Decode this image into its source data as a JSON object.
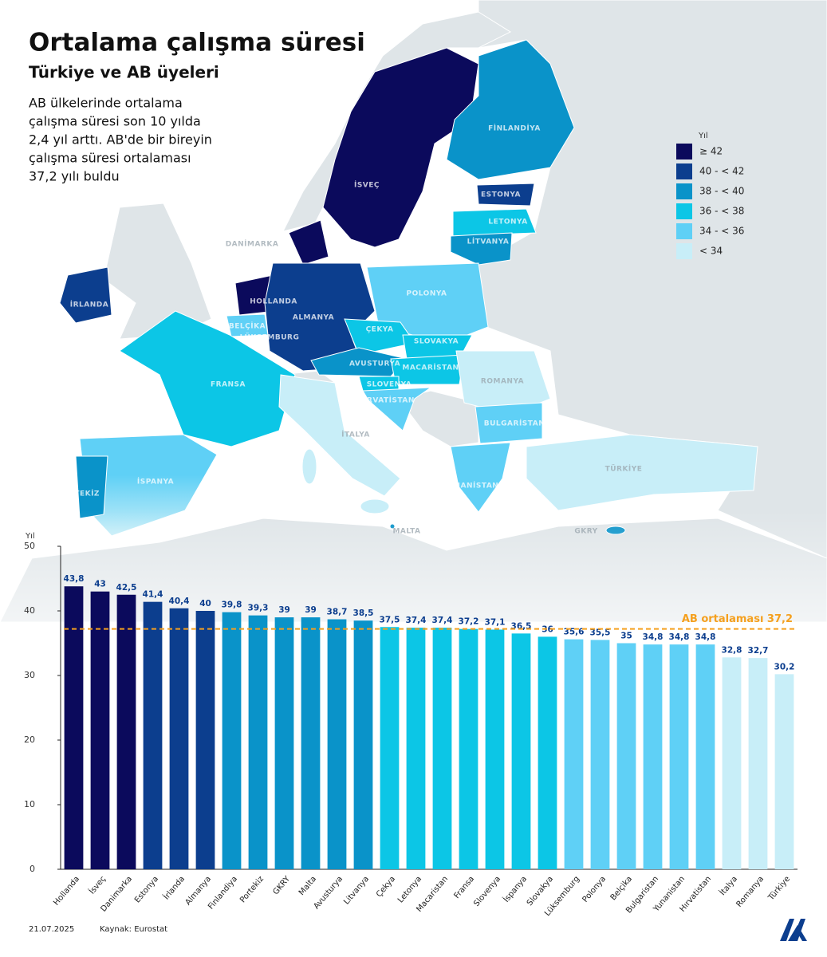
{
  "header": {
    "title": "Ortalama çalışma süresi",
    "subtitle": "Türkiye ve AB üyeleri",
    "description": [
      "AB ülkelerinde ortalama",
      "çalışma süresi son 10 yılda",
      "2,4 yıl arttı. AB'de bir bireyin",
      "çalışma süresi ortalaması",
      "37,2 yılı buldu"
    ]
  },
  "map": {
    "legend": {
      "title": "Yıl",
      "items": [
        {
          "label": "≥ 42",
          "color": "#0b0a5c"
        },
        {
          "label": "40 - < 42",
          "color": "#0c3e8e"
        },
        {
          "label": "38 - < 40",
          "color": "#0a93c9"
        },
        {
          "label": "36 - < 38",
          "color": "#0cc6e6"
        },
        {
          "label": "34 - < 36",
          "color": "#5fd0f6"
        },
        {
          "label": "< 34",
          "color": "#c8eef8"
        }
      ]
    },
    "labels": [
      "İSVEÇ",
      "FİNLANDİYA",
      "ESTONYA",
      "LETONYA",
      "LİTVANYA",
      "DANİMARKA",
      "İRLANDA",
      "HOLLANDA",
      "BELÇİKA",
      "LÜKSEMBURG",
      "ALMANYA",
      "POLONYA",
      "ÇEKYA",
      "SLOVAKYA",
      "AVUSTURYA",
      "MACARİSTAN",
      "SLOVENYA",
      "HIRVATİSTAN",
      "ROMANYA",
      "FRANSA",
      "BULGARİSTAN",
      "İTALYA",
      "İSPANYA",
      "PORTEKİZ",
      "YUNANİSTAN",
      "TÜRKİYE",
      "MALTA",
      "GKRY"
    ]
  },
  "chart_data": {
    "type": "bar",
    "y_label": "Yıl",
    "categories": [
      "Hollanda",
      "İsveç",
      "Danimarka",
      "Estonya",
      "İrlanda",
      "Almanya",
      "Finlandiya",
      "Portekiz",
      "GKRY",
      "Malta",
      "Avusturya",
      "Litvanya",
      "Çekya",
      "Letonya",
      "Macaristan",
      "Fransa",
      "Slovenya",
      "İspanya",
      "Slovakya",
      "Lüksemburg",
      "Polonya",
      "Belçika",
      "Bulgaristan",
      "Yunanistan",
      "Hırvatistan",
      "İtalya",
      "Romanya",
      "Türkiye"
    ],
    "values": [
      43.8,
      43,
      42.5,
      41.4,
      40.4,
      40,
      39.8,
      39.3,
      39,
      39,
      38.7,
      38.5,
      37.5,
      37.4,
      37.4,
      37.2,
      37.1,
      36.5,
      36,
      35.6,
      35.5,
      35,
      34.8,
      34.8,
      34.8,
      32.8,
      32.7,
      30.2
    ],
    "value_labels": [
      "43,8",
      "43",
      "42,5",
      "41,4",
      "40,4",
      "40",
      "39,8",
      "39,3",
      "39",
      "39",
      "38,7",
      "38,5",
      "37,5",
      "37,4",
      "37,4",
      "37,2",
      "37,1",
      "36,5",
      "36",
      "35,6",
      "35,5",
      "35",
      "34,8",
      "34,8",
      "34,8",
      "32,8",
      "32,7",
      "30,2"
    ],
    "colors": [
      "#0b0a5c",
      "#0b0a5c",
      "#0b0a5c",
      "#0c3e8e",
      "#0c3e8e",
      "#0c3e8e",
      "#0a93c9",
      "#0a93c9",
      "#0a93c9",
      "#0a93c9",
      "#0a93c9",
      "#0a93c9",
      "#0cc6e6",
      "#0cc6e6",
      "#0cc6e6",
      "#0cc6e6",
      "#0cc6e6",
      "#0cc6e6",
      "#0cc6e6",
      "#5fd0f6",
      "#5fd0f6",
      "#5fd0f6",
      "#5fd0f6",
      "#5fd0f6",
      "#5fd0f6",
      "#c8eef8",
      "#c8eef8",
      "#c8eef8"
    ],
    "ylim": [
      0,
      50
    ],
    "yticks": [
      0,
      10,
      20,
      30,
      40,
      50
    ],
    "grid": false,
    "reference_line": {
      "value": 37.2,
      "label": "AB ortalaması 37,2",
      "color": "#f5a01e"
    }
  },
  "footer": {
    "date": "21.07.2025",
    "source": "Kaynak: Eurostat"
  }
}
